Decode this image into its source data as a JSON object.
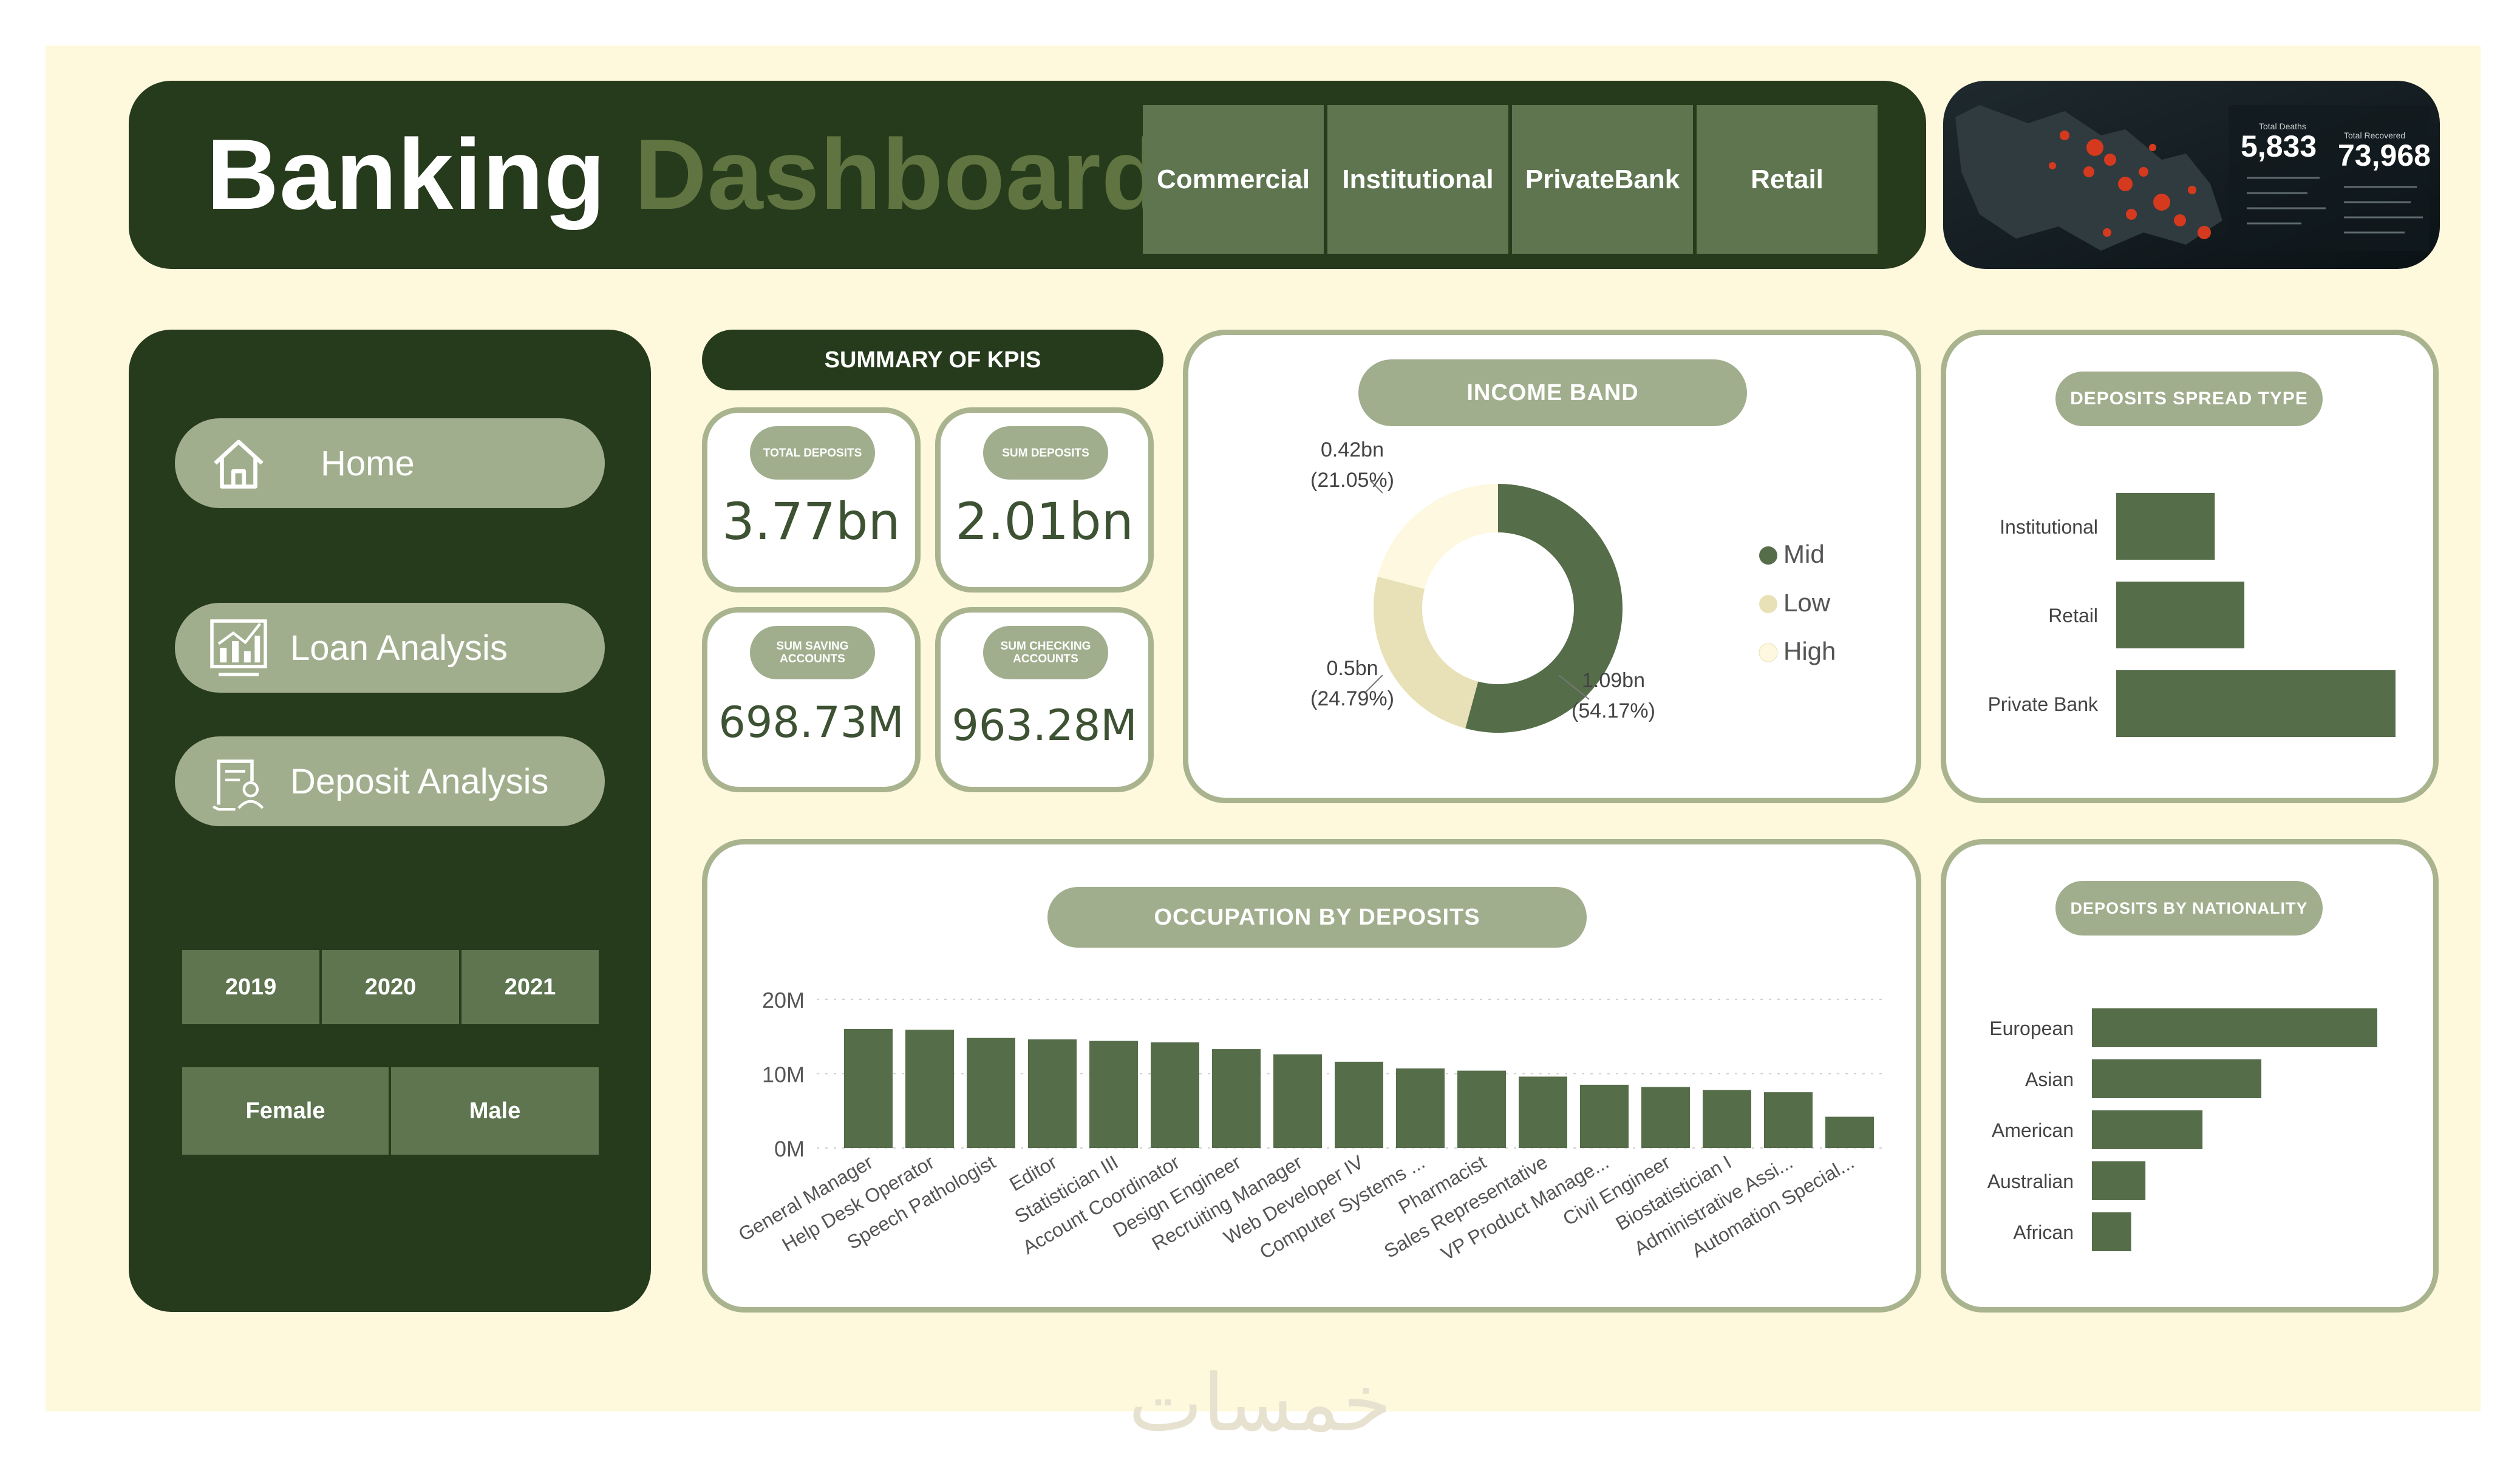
{
  "header": {
    "title_part1": "Banking",
    "title_part2": "Dashboard",
    "bank_types": [
      "Commercial",
      "Institutional",
      "Private\nBank",
      "Retail"
    ]
  },
  "hero": {
    "stat1": "5,833",
    "stat2": "73,968"
  },
  "sidebar": {
    "nav": [
      {
        "label": "Home",
        "icon": "home-icon"
      },
      {
        "label": "Loan Analysis",
        "icon": "chart-icon"
      },
      {
        "label": "Deposit Analysis",
        "icon": "deposit-icon"
      }
    ],
    "years": [
      "2019",
      "2020",
      "2021"
    ],
    "genders": [
      "Female",
      "Male"
    ]
  },
  "kpis": {
    "title": "SUMMARY OF KPIS",
    "cards": [
      {
        "label": "TOTAL DEPOSITS",
        "value": "3.77bn"
      },
      {
        "label": "SUM DEPOSITS",
        "value": "2.01bn"
      },
      {
        "label": "SUM SAVING ACCOUNTS",
        "value": "698.73M"
      },
      {
        "label": "SUM CHECKING ACCOUNTS",
        "value": "963.28M"
      }
    ]
  },
  "colors": {
    "dark": "#263a1c",
    "accent": "#5e7550",
    "pill": "#a1ae8d",
    "bar": "#566d4a",
    "mid": "#566d4a",
    "low": "#e8e1b7",
    "high": "#fdf8df",
    "background": "#fef8dd"
  },
  "chart_data": [
    {
      "type": "pie",
      "title": "INCOME BAND",
      "categories": [
        "Mid",
        "Low",
        "High"
      ],
      "values": [
        1.09,
        0.5,
        0.42
      ],
      "labels": [
        {
          "value": "1.09bn",
          "pct": "(54.17%)"
        },
        {
          "value": "0.5bn",
          "pct": "(24.79%)"
        },
        {
          "value": "0.42bn",
          "pct": "(21.05%)"
        }
      ],
      "legend": "right"
    },
    {
      "type": "bar",
      "title": "DEPOSITS SPREAD TYPE",
      "orientation": "horizontal",
      "categories": [
        "Institutional",
        "Retail",
        "Private Bank"
      ],
      "values": [
        0.6,
        0.78,
        1.7
      ]
    },
    {
      "type": "bar",
      "title": "OCCUPATION BY DEPOSITS",
      "categories": [
        "General Manager",
        "Help Desk Operator",
        "Speech Pathologist",
        "Editor",
        "Statistician III",
        "Account Coordinator",
        "Design Engineer",
        "Recruiting Manager",
        "Web Developer IV",
        "Computer Systems ...",
        "Pharmacist",
        "Sales Representative",
        "VP Product Manage...",
        "Civil Engineer",
        "Biostatistician I",
        "Administrative Assi...",
        "Automation Special..."
      ],
      "values": [
        16.0,
        15.9,
        14.8,
        14.6,
        14.4,
        14.2,
        13.3,
        12.6,
        11.6,
        10.7,
        10.4,
        9.6,
        8.5,
        8.2,
        7.8,
        7.5,
        4.2
      ],
      "yticks": [
        "0M",
        "10M",
        "20M"
      ],
      "ylim": [
        0,
        20
      ],
      "grid": true
    },
    {
      "type": "bar",
      "title": "DEPOSITS BY NATIONALITY",
      "orientation": "horizontal",
      "categories": [
        "European",
        "Asian",
        "American",
        "Australian",
        "African"
      ],
      "values": [
        1.6,
        0.95,
        0.62,
        0.3,
        0.22
      ]
    }
  ],
  "watermark": "خمسات"
}
